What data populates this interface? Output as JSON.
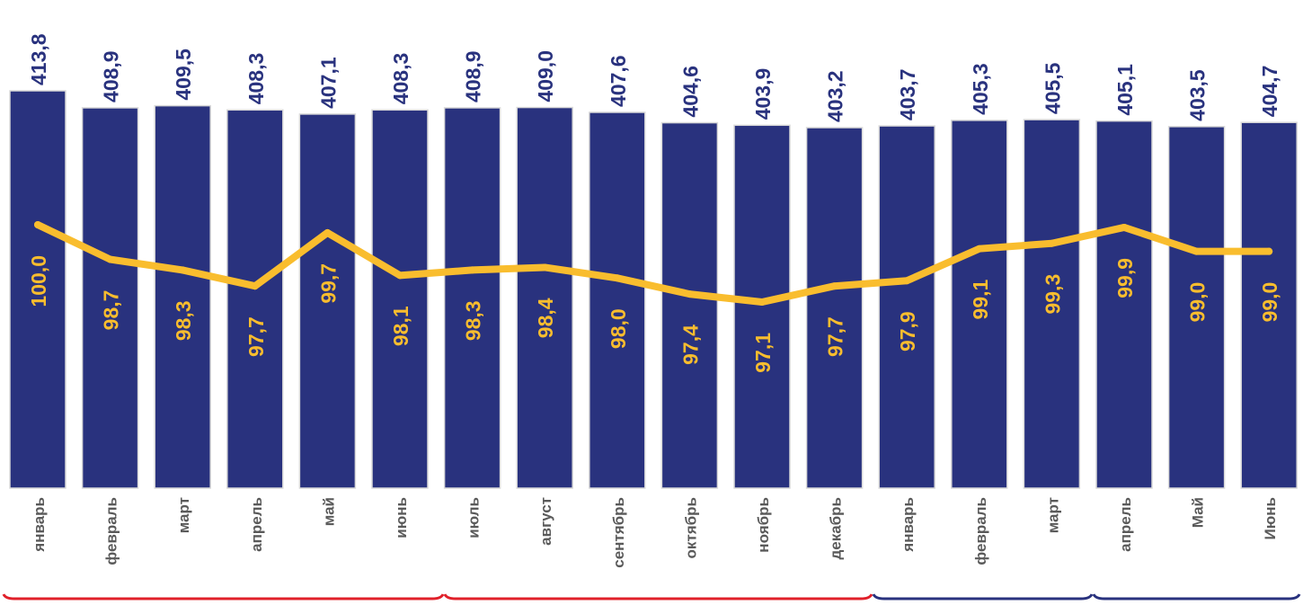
{
  "chart_data": {
    "type": "bar",
    "categories": [
      "январь",
      "февраль",
      "март",
      "апрель",
      "май",
      "июнь",
      "июль",
      "август",
      "сентябрь",
      "октябрь",
      "ноябрь",
      "декабрь",
      "январь",
      "февраль",
      "март",
      "апрель",
      "Май",
      "Июнь"
    ],
    "series": [
      {
        "type": "bar",
        "values": [
          413.8,
          408.9,
          409.5,
          408.3,
          407.1,
          408.3,
          408.9,
          409.0,
          407.6,
          404.6,
          403.9,
          403.2,
          403.7,
          405.3,
          405.5,
          405.1,
          403.5,
          404.7
        ],
        "labels": [
          "413,8",
          "408,9",
          "409,5",
          "408,3",
          "407,1",
          "408,3",
          "408,9",
          "409,0",
          "407,6",
          "404,6",
          "403,9",
          "403,2",
          "403,7",
          "405,3",
          "405,5",
          "405,1",
          "403,5",
          "404,7"
        ]
      },
      {
        "type": "line",
        "values": [
          100.0,
          98.7,
          98.3,
          97.7,
          99.7,
          98.1,
          98.3,
          98.4,
          98.0,
          97.4,
          97.1,
          97.7,
          97.9,
          99.1,
          99.3,
          99.9,
          99.0,
          99.0
        ],
        "labels": [
          "100,0",
          "98,7",
          "98,3",
          "97,7",
          "99,7",
          "98,1",
          "98,3",
          "98,4",
          "98,0",
          "97,4",
          "97,1",
          "97,7",
          "97,9",
          "99,1",
          "99,3",
          "99,9",
          "99,0",
          "99,0"
        ]
      }
    ],
    "grid": false,
    "legend": "none"
  },
  "colors": {
    "bar": "#29327e",
    "bar_label": "#29327e",
    "line": "#f9bd2e",
    "line_label": "#f9bd2e",
    "category_label": "#5a5a5a",
    "bracket_red": "#e0202a",
    "bracket_blue": "#29327e"
  }
}
